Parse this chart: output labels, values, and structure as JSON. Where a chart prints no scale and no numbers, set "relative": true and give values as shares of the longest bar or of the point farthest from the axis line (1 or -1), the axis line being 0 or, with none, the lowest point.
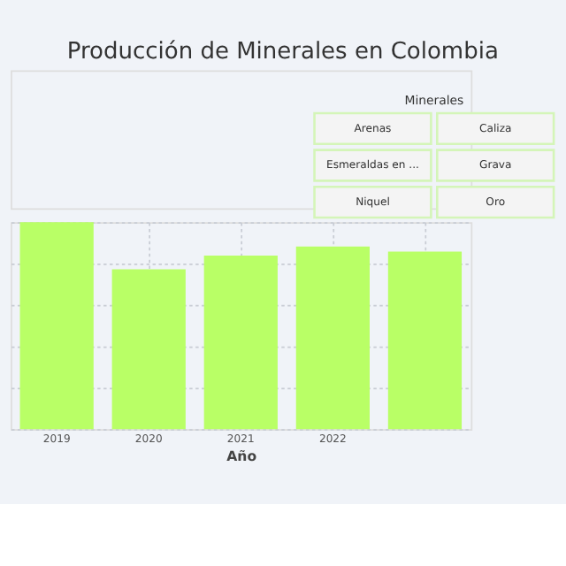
{
  "chart_data": {
    "type": "bar",
    "title": "Producción de Minerales en Colombia",
    "xlabel": "Año",
    "categories": [
      "2019",
      "2020",
      "2021",
      "2022",
      null
    ],
    "values": [
      1.0,
      0.772,
      0.838,
      0.882,
      0.858
    ],
    "color": "#b9ff66",
    "relative": true,
    "grid": true,
    "annotations": [
      "Minerales",
      "Arenas",
      "Caliza",
      "Esmeraldas en ...",
      "Grava",
      "Niquel",
      "Oro"
    ]
  }
}
